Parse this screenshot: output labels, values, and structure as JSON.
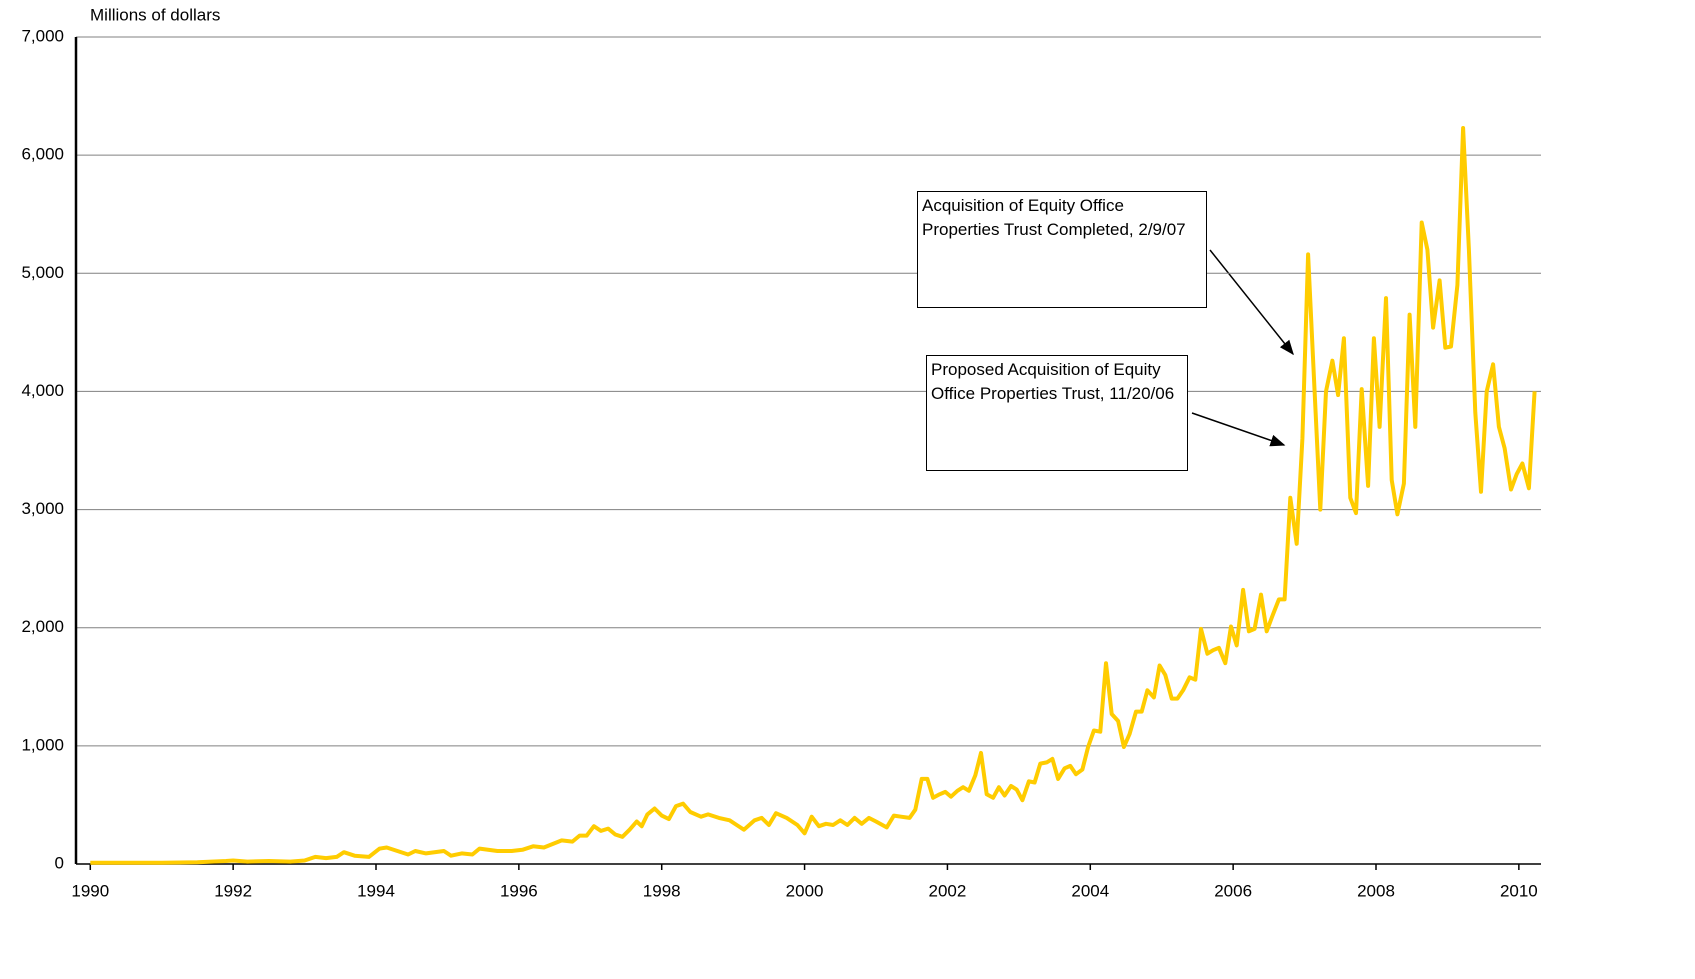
{
  "chart_data": {
    "type": "line",
    "y_label": "Millions of dollars",
    "color": "#ffcc00",
    "grid": true,
    "xlim": [
      1989.8,
      2010.31
    ],
    "xticks": [
      1990,
      1992,
      1994,
      1996,
      1998,
      2000,
      2002,
      2004,
      2006,
      2008,
      2010
    ],
    "ylim": [
      0,
      7000
    ],
    "yticks": [
      0,
      {
        "value": 1000,
        "label": "1,000"
      },
      {
        "value": 2000,
        "label": "2,000"
      },
      {
        "value": 3000,
        "label": "3,000"
      },
      {
        "value": 4000,
        "label": "4,000"
      },
      {
        "value": 5000,
        "label": "5,000"
      },
      {
        "value": 6000,
        "label": "6,000"
      },
      {
        "value": 7000,
        "label": "7,000"
      }
    ],
    "annotations": [
      {
        "text": "Acquisition of Equity Office Properties Trust Completed, 2/9/07"
      },
      {
        "text": "Proposed Acquisition of Equity Office Properties Trust, 11/20/06"
      }
    ],
    "x": [
      1990.0,
      1990.5,
      1991.0,
      1991.5,
      1991.9,
      1992.0,
      1992.2,
      1992.5,
      1992.8,
      1993.0,
      1993.15,
      1993.3,
      1993.45,
      1993.55,
      1993.7,
      1993.9,
      1994.05,
      1994.15,
      1994.3,
      1994.45,
      1994.55,
      1994.7,
      1994.95,
      1995.05,
      1995.2,
      1995.35,
      1995.45,
      1995.7,
      1995.9,
      1996.05,
      1996.2,
      1996.35,
      1996.6,
      1996.75,
      1996.85,
      1996.95,
      1997.05,
      1997.15,
      1997.25,
      1997.35,
      1997.45,
      1997.55,
      1997.65,
      1997.72,
      1997.8,
      1997.9,
      1998.0,
      1998.1,
      1998.2,
      1998.3,
      1998.4,
      1998.55,
      1998.65,
      1998.8,
      1998.95,
      1999.05,
      1999.15,
      1999.3,
      1999.4,
      1999.5,
      1999.6,
      1999.75,
      1999.9,
      2000.0,
      2000.1,
      2000.2,
      2000.3,
      2000.4,
      2000.5,
      2000.6,
      2000.7,
      2000.8,
      2000.9,
      2001.0,
      2001.15,
      2001.25,
      2001.35,
      2001.47,
      2001.55,
      2001.64,
      2001.72,
      2001.8,
      2001.89,
      2001.97,
      2002.05,
      2002.14,
      2002.22,
      2002.3,
      2002.39,
      2002.47,
      2002.55,
      2002.64,
      2002.72,
      2002.8,
      2002.89,
      2002.97,
      2003.05,
      2003.14,
      2003.22,
      2003.3,
      2003.39,
      2003.47,
      2003.55,
      2003.64,
      2003.72,
      2003.8,
      2003.89,
      2003.97,
      2004.05,
      2004.14,
      2004.22,
      2004.3,
      2004.39,
      2004.47,
      2004.55,
      2004.64,
      2004.72,
      2004.8,
      2004.89,
      2004.97,
      2005.05,
      2005.14,
      2005.22,
      2005.3,
      2005.39,
      2005.47,
      2005.55,
      2005.64,
      2005.72,
      2005.8,
      2005.89,
      2005.97,
      2006.05,
      2006.14,
      2006.22,
      2006.3,
      2006.39,
      2006.47,
      2006.55,
      2006.64,
      2006.72,
      2006.8,
      2006.89,
      2006.97,
      2007.05,
      2007.14,
      2007.22,
      2007.3,
      2007.39,
      2007.47,
      2007.55,
      2007.64,
      2007.72,
      2007.8,
      2007.89,
      2007.97,
      2008.05,
      2008.14,
      2008.22,
      2008.3,
      2008.39,
      2008.47,
      2008.55,
      2008.64,
      2008.72,
      2008.8,
      2008.89,
      2008.97,
      2009.05,
      2009.14,
      2009.22,
      2009.3,
      2009.39,
      2009.47,
      2009.55,
      2009.64,
      2009.72,
      2009.8,
      2009.89,
      2009.97,
      2010.05,
      2010.14,
      2010.22
    ],
    "values": [
      10,
      10,
      10,
      15,
      25,
      30,
      20,
      25,
      20,
      30,
      60,
      50,
      60,
      100,
      70,
      60,
      130,
      140,
      110,
      80,
      110,
      90,
      110,
      70,
      90,
      80,
      130,
      110,
      110,
      120,
      150,
      140,
      200,
      190,
      240,
      240,
      320,
      280,
      300,
      250,
      230,
      290,
      360,
      320,
      420,
      470,
      410,
      380,
      490,
      510,
      440,
      400,
      420,
      390,
      370,
      330,
      290,
      370,
      390,
      330,
      430,
      390,
      330,
      260,
      400,
      320,
      340,
      330,
      370,
      330,
      390,
      340,
      390,
      360,
      310,
      410,
      400,
      390,
      460,
      720,
      720,
      560,
      590,
      610,
      570,
      620,
      650,
      620,
      750,
      940,
      590,
      560,
      650,
      580,
      660,
      630,
      540,
      700,
      690,
      850,
      860,
      890,
      720,
      810,
      830,
      760,
      800,
      990,
      1130,
      1120,
      1700,
      1270,
      1210,
      990,
      1100,
      1290,
      1290,
      1470,
      1410,
      1680,
      1600,
      1400,
      1400,
      1470,
      1580,
      1560,
      1990,
      1780,
      1810,
      1830,
      1700,
      2010,
      1850,
      2320,
      1970,
      1990,
      2280,
      1970,
      2100,
      2240,
      2240,
      3100,
      2710,
      3600,
      5160,
      4000,
      3000,
      4000,
      4260,
      3970,
      4450,
      3100,
      2970,
      4020,
      3200,
      4450,
      3700,
      4790,
      3250,
      2960,
      3220,
      4650,
      3700,
      5430,
      5200,
      4540,
      4940,
      4370,
      4380,
      4900,
      6230,
      5200,
      3820,
      3150,
      4000,
      4230,
      3700,
      3520,
      3170,
      3300,
      3390,
      3180,
      4000
    ]
  }
}
